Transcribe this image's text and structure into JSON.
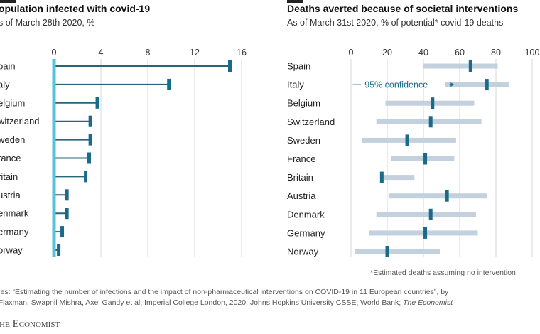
{
  "left": {
    "title": "opulation infected with covid-19",
    "subtitle": "s of March 28th 2020, %"
  },
  "right": {
    "title": "Deaths averted because of societal interventions",
    "subtitle": "As of March 31st 2020, % of potential* covid-19 deaths",
    "annotation": "95% confidence",
    "footnote": "*Estimated deaths assuming no intervention"
  },
  "sources": {
    "line1": "urces: “Estimating the number of infections and the impact of non-pharmaceutical interventions on COVID-19 in 11 European countries”, by",
    "line2a": "th Flaxman, Swapnil Mishra, Axel Gandy et al, Imperial College London, 2020; Johns Hopkins University CSSE; World Bank; ",
    "line2b": "The Economist"
  },
  "logo": {
    "prefix": "T",
    "rest": "he Economist"
  },
  "colors": {
    "left_line": "#2a6478",
    "marker": "#1a6a8a",
    "zero_line": "#55c3d8",
    "band": "#c3d0de",
    "grid": "#d7d7d7"
  },
  "chart_data": [
    {
      "type": "bar",
      "title": "opulation infected with covid-19",
      "subtitle": "s of March 28th 2020, %",
      "categories": [
        "pain",
        "aly",
        "elgium",
        "witzerland",
        "weden",
        "rance",
        "ritain",
        "ustria",
        "enmark",
        "ermany",
        "orway"
      ],
      "values": [
        15.0,
        9.8,
        3.7,
        3.1,
        3.1,
        3.0,
        2.7,
        1.1,
        1.1,
        0.7,
        0.4
      ],
      "xticks": [
        0,
        4,
        8,
        12,
        16
      ],
      "xlim": [
        0,
        16
      ],
      "grid": true
    },
    {
      "type": "scatter",
      "title": "Deaths averted because of societal interventions",
      "subtitle": "As of March 31st 2020, % of potential* covid-19 deaths",
      "categories": [
        "Spain",
        "Italy",
        "Belgium",
        "Switzerland",
        "Sweden",
        "France",
        "Britain",
        "Austria",
        "Denmark",
        "Germany",
        "Norway"
      ],
      "series": [
        {
          "name": "95% confidence",
          "low": [
            40,
            52,
            19,
            14,
            6,
            22,
            17,
            21,
            14,
            10,
            2
          ],
          "high": [
            81,
            87,
            68,
            72,
            58,
            57,
            35,
            75,
            69,
            70,
            49
          ]
        }
      ],
      "estimate": [
        66,
        75,
        45,
        44,
        31,
        41,
        17,
        53,
        44,
        41,
        20
      ],
      "xticks": [
        0,
        20,
        40,
        60,
        80,
        100
      ],
      "xlim": [
        0,
        100
      ],
      "grid": true
    }
  ]
}
